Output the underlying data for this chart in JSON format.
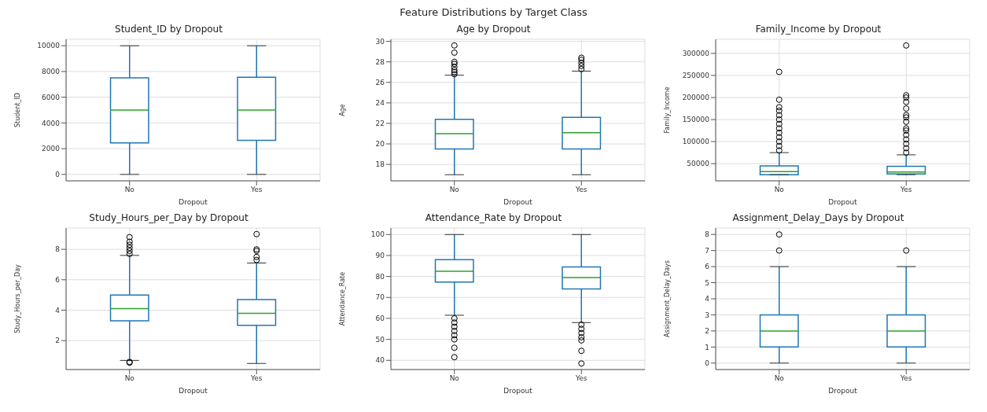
{
  "chart_data": [
    {
      "type": "other",
      "title": "Feature Distributions by Target Class"
    },
    {
      "type": "box",
      "title": "Student_ID by Dropout",
      "xlabel": "Dropout",
      "ylabel": "Student_ID",
      "categories": [
        "No",
        "Yes"
      ],
      "color": "#1f77b4",
      "grid": true,
      "ylim": [
        -500,
        10500
      ],
      "yticks": [
        0,
        2000,
        4000,
        6000,
        8000,
        10000
      ],
      "boxes": [
        {
          "low": 0,
          "q1": 2450,
          "median": 5000,
          "q3": 7500,
          "high": 10000
        },
        {
          "low": 0,
          "q1": 2650,
          "median": 5000,
          "q3": 7550,
          "high": 10000
        }
      ]
    },
    {
      "type": "box",
      "title": "Age by Dropout",
      "xlabel": "Dropout",
      "ylabel": "Age",
      "categories": [
        "No",
        "Yes"
      ],
      "color": "#1f77b4",
      "grid": true,
      "ylim": [
        16.4,
        30.2
      ],
      "yticks": [
        18,
        20,
        22,
        24,
        26,
        28,
        30
      ],
      "boxes": [
        {
          "low": 17,
          "q1": 19.5,
          "median": 21,
          "q3": 22.4,
          "high": 26.7,
          "outliers": [
            26.8,
            27,
            27.2,
            27.5,
            27.8,
            28,
            28.9,
            29.6
          ]
        },
        {
          "low": 17,
          "q1": 19.5,
          "median": 21.1,
          "q3": 22.6,
          "high": 27.1,
          "outliers": [
            27.3,
            27.6,
            27.9,
            28.2,
            28.4
          ]
        }
      ]
    },
    {
      "type": "box",
      "title": "Family_Income by Dropout",
      "xlabel": "Dropout",
      "ylabel": "Family_Income",
      "categories": [
        "No",
        "Yes"
      ],
      "color": "#1f77b4",
      "grid": true,
      "ylim": [
        11000,
        332000
      ],
      "yticks": [
        50000,
        100000,
        150000,
        200000,
        250000,
        300000
      ],
      "boxes": [
        {
          "low": 25000,
          "q1": 25000,
          "median": 32000,
          "q3": 45000,
          "high": 75000,
          "outliers": [
            80000,
            90000,
            100000,
            110000,
            120000,
            130000,
            140000,
            150000,
            160000,
            170000,
            178000,
            195000,
            258000
          ]
        },
        {
          "low": 25000,
          "q1": 26500,
          "median": 31000,
          "q3": 44000,
          "high": 70000,
          "outliers": [
            75000,
            85000,
            95000,
            105000,
            115000,
            125000,
            130000,
            145000,
            155000,
            160000,
            175000,
            190000,
            200000,
            205000,
            318000
          ]
        }
      ]
    },
    {
      "type": "box",
      "title": "Study_Hours_per_Day by Dropout",
      "xlabel": "Dropout",
      "ylabel": "Study_Hours_per_Day",
      "categories": [
        "No",
        "Yes"
      ],
      "color": "#1f77b4",
      "grid": true,
      "ylim": [
        0.1,
        9.4
      ],
      "yticks": [
        2,
        4,
        6,
        8
      ],
      "boxes": [
        {
          "low": 0.7,
          "q1": 3.3,
          "median": 4.1,
          "q3": 5,
          "high": 7.6,
          "outliers": [
            0.55,
            0.6,
            7.7,
            7.9,
            8.1,
            8.3,
            8.5,
            8.8
          ]
        },
        {
          "low": 0.5,
          "q1": 3,
          "median": 3.8,
          "q3": 4.7,
          "high": 7.1,
          "outliers": [
            7.3,
            7.5,
            7.9,
            8,
            9
          ]
        }
      ]
    },
    {
      "type": "box",
      "title": "Attendance_Rate by Dropout",
      "xlabel": "Dropout",
      "ylabel": "Attendance_Rate",
      "categories": [
        "No",
        "Yes"
      ],
      "color": "#1f77b4",
      "grid": true,
      "ylim": [
        35.6,
        103.1
      ],
      "yticks": [
        40,
        50,
        60,
        70,
        80,
        90,
        100
      ],
      "boxes": [
        {
          "low": 61.5,
          "q1": 77.3,
          "median": 82.5,
          "q3": 88,
          "high": 100,
          "outliers": [
            60,
            58,
            56,
            54,
            52,
            50,
            46,
            41.5
          ]
        },
        {
          "low": 58,
          "q1": 74,
          "median": 79.5,
          "q3": 84.5,
          "high": 100,
          "outliers": [
            57,
            55,
            53,
            51,
            49.5,
            44.5,
            38.5
          ]
        }
      ]
    },
    {
      "type": "box",
      "title": "Assignment_Delay_Days by Dropout",
      "xlabel": "Dropout",
      "ylabel": "Assignment_Delay_Days",
      "categories": [
        "No",
        "Yes"
      ],
      "color": "#1f77b4",
      "grid": true,
      "ylim": [
        -0.4,
        8.4
      ],
      "yticks": [
        0,
        1,
        2,
        3,
        4,
        5,
        6,
        7,
        8
      ],
      "boxes": [
        {
          "low": 0,
          "q1": 1,
          "median": 2,
          "q3": 3,
          "high": 6,
          "outliers": [
            7,
            8
          ]
        },
        {
          "low": 0,
          "q1": 1,
          "median": 2,
          "q3": 3,
          "high": 6,
          "outliers": [
            7
          ]
        }
      ]
    }
  ]
}
